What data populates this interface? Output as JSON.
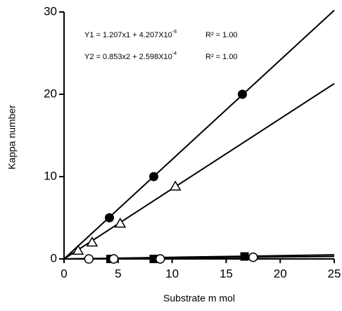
{
  "chart_data": {
    "type": "scatter",
    "xlabel": "Substrate  m mol",
    "ylabel": "Kappa number",
    "xlim": [
      0,
      25
    ],
    "ylim": [
      0,
      30
    ],
    "xticks": [
      0,
      5,
      10,
      15,
      20,
      25
    ],
    "yticks": [
      0,
      10,
      20,
      30
    ],
    "color": "#000000",
    "annotations": [
      {
        "text": "Y1 = 1.207x1 + 4.207X10",
        "exponent": "-8",
        "r2": "R² = 1.00"
      },
      {
        "text": "Y2 = 0.853x2 + 2.598X10",
        "exponent": "-4",
        "r2": "R² = 1.00"
      }
    ],
    "series": [
      {
        "marker": "circle-filled",
        "x": [
          4.2,
          8.3,
          16.5
        ],
        "values": [
          5,
          10,
          20
        ]
      },
      {
        "marker": "triangle-open",
        "x": [
          1.3,
          2.6,
          5.2,
          10.3
        ],
        "values": [
          1,
          2,
          4.3,
          8.8
        ]
      },
      {
        "marker": "square-filled",
        "x": [
          4.3,
          8.3,
          16.7
        ],
        "values": [
          0,
          0,
          0.3
        ]
      },
      {
        "marker": "circle-open",
        "x": [
          2.3,
          4.6,
          8.9,
          17.5
        ],
        "values": [
          0,
          0,
          0,
          0.2
        ]
      }
    ],
    "fit_lines": [
      {
        "x": [
          0,
          25
        ],
        "values": [
          0,
          30.2
        ]
      },
      {
        "x": [
          0,
          25
        ],
        "values": [
          0,
          21.3
        ]
      },
      {
        "x": [
          0,
          25
        ],
        "values": [
          0,
          0.5
        ]
      },
      {
        "x": [
          0,
          25
        ],
        "values": [
          0,
          0.3
        ]
      }
    ]
  }
}
